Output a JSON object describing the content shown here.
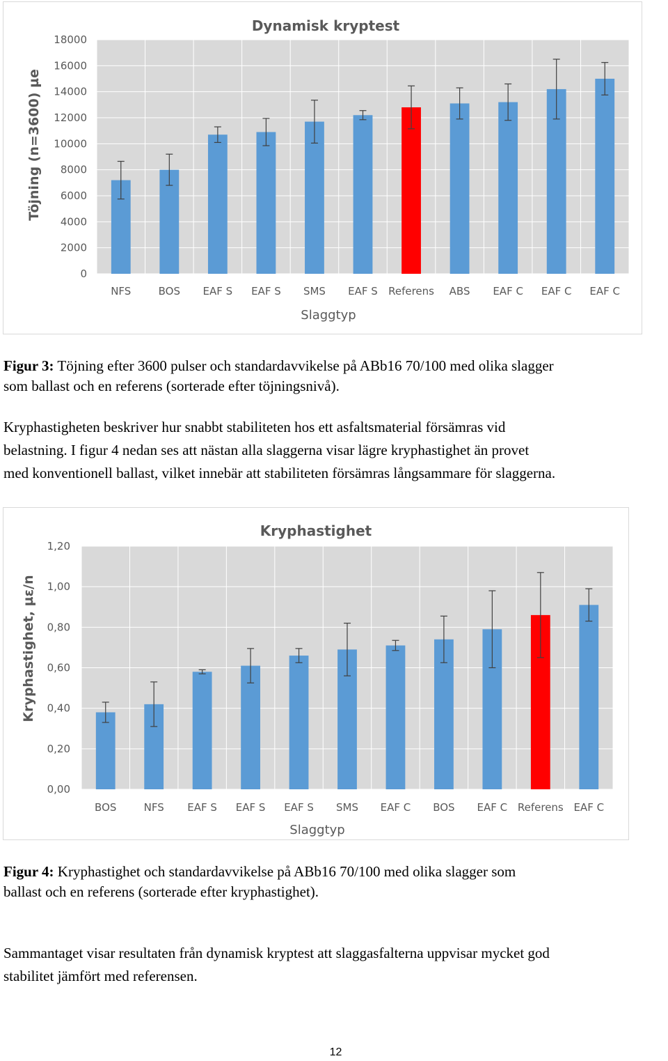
{
  "chart_data": [
    {
      "type": "bar",
      "title": "Dynamisk kryptest",
      "xlabel": "Slaggtyp",
      "ylabel": "Töjning (n=3600) µe",
      "ylim": [
        0,
        18000
      ],
      "yticks": [
        "0",
        "2000",
        "4000",
        "6000",
        "8000",
        "10000",
        "12000",
        "14000",
        "16000",
        "18000"
      ],
      "categories": [
        "NFS",
        "BOS",
        "EAF S",
        "EAF S",
        "SMS",
        "EAF S",
        "Referens",
        "ABS",
        "EAF C",
        "EAF C",
        "EAF C"
      ],
      "values": [
        7200,
        8000,
        10700,
        10900,
        11700,
        12200,
        12800,
        13100,
        13200,
        14200,
        15000
      ],
      "error": [
        1450,
        1200,
        600,
        1050,
        1650,
        350,
        1650,
        1200,
        1400,
        2300,
        1250
      ],
      "bar_color": "#5b9bd5",
      "highlight_color": "#ff0000",
      "highlight_index": 6,
      "grid": true,
      "legend": "none"
    },
    {
      "type": "bar",
      "title": "Kryphastighet",
      "xlabel": "Slaggtyp",
      "ylabel": "Kryphastighet, µε/n",
      "ylim": [
        0,
        1.2
      ],
      "yticks": [
        "0,00",
        "0,20",
        "0,40",
        "0,60",
        "0,80",
        "1,00",
        "1,20"
      ],
      "categories": [
        "BOS",
        "NFS",
        "EAF S",
        "EAF S",
        "EAF S",
        "SMS",
        "EAF C",
        "BOS",
        "EAF C",
        "Referens",
        "EAF C"
      ],
      "values": [
        0.38,
        0.42,
        0.58,
        0.61,
        0.66,
        0.69,
        0.71,
        0.74,
        0.79,
        0.86,
        0.91
      ],
      "error": [
        0.05,
        0.11,
        0.01,
        0.085,
        0.035,
        0.13,
        0.025,
        0.115,
        0.19,
        0.21,
        0.08
      ],
      "bar_color": "#5b9bd5",
      "highlight_color": "#ff0000",
      "highlight_index": 9,
      "grid": true,
      "legend": "none"
    }
  ],
  "text": {
    "fig3_label": "Figur 3:",
    "fig3_line1": " Töjning efter 3600 pulser och standardavvikelse på ABb16 70/100 med olika slagger",
    "fig3_line2": "som ballast och en referens (sorterade efter töjningsnivå).",
    "para1_line1": "Kryphastigheten beskriver hur snabbt stabiliteten hos ett asfaltsmaterial försämras vid",
    "para1_line2": "belastning. I figur 4 nedan ses att nästan alla slaggerna visar lägre kryphastighet än provet",
    "para1_line3": "med konventionell ballast, vilket innebär att stabiliteten försämras långsammare för slaggerna.",
    "fig4_label": "Figur 4:",
    "fig4_line1": " Kryphastighet och standardavvikelse på ABb16 70/100 med olika slagger som",
    "fig4_line2": "ballast och en referens (sorterade efter kryphastighet).",
    "para2_line1": "Sammantaget visar resultaten från dynamisk kryptest att slaggasfalterna uppvisar mycket god",
    "para2_line2": "stabilitet jämfört med referensen.",
    "page_number": "12"
  }
}
